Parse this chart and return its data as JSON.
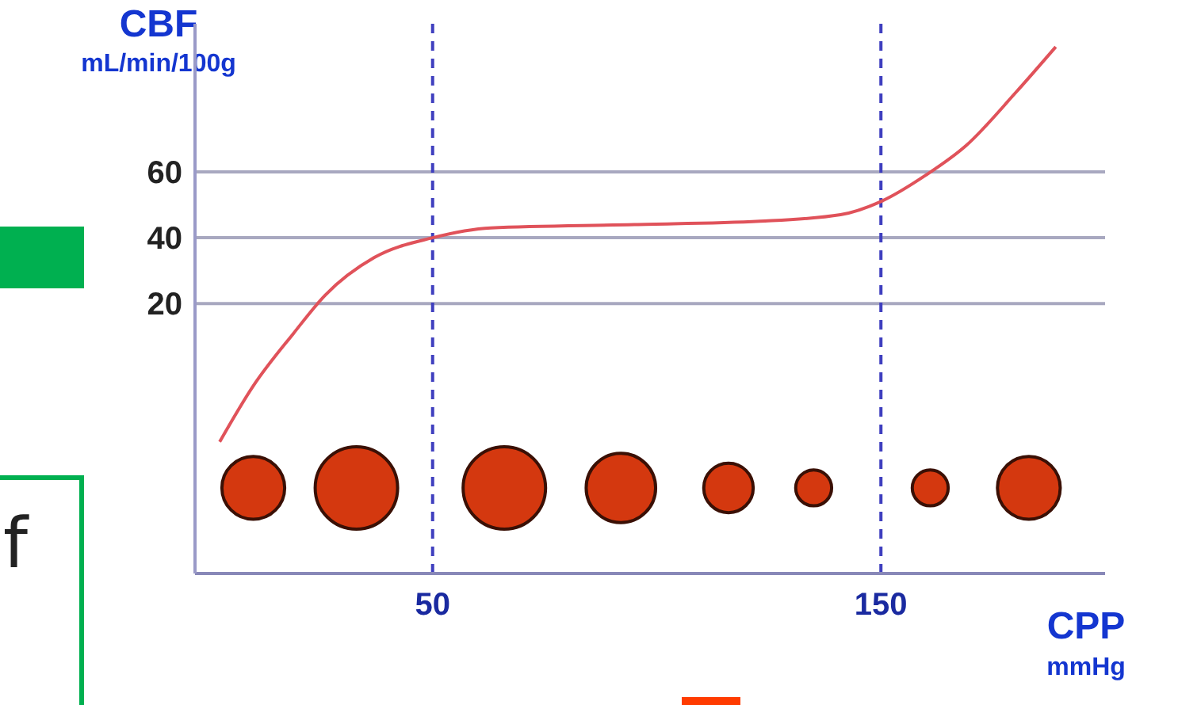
{
  "chart_data": {
    "type": "line",
    "xlabel": "CPP mmHg",
    "ylabel": "CBF mL/min/100g",
    "annotations": [
      "f"
    ],
    "xlim": [
      -3,
      200
    ],
    "xticks": [
      50,
      150
    ],
    "ylim": [
      -62,
      105
    ],
    "yticks": [
      20,
      40,
      60
    ],
    "grid": "y",
    "ref_lines": [
      {
        "axis": "x",
        "value": 50,
        "color": "#3f3fbf",
        "line_style": "dashed"
      },
      {
        "axis": "x",
        "value": 150,
        "color": "#3f3fbf",
        "line_style": "dashed"
      }
    ],
    "series": [
      {
        "color": "#e0525a",
        "x": [
          2.5,
          10,
          19,
          26,
          37,
          50,
          63,
          95,
          123,
          141,
          150,
          160,
          169,
          180,
          189
        ],
        "values": [
          -22,
          -5,
          11,
          22.5,
          34,
          40,
          43,
          44,
          45,
          47,
          51,
          59,
          68,
          84,
          98
        ]
      },
      {
        "type": "bubble",
        "color": "#d4380f",
        "x": [
          10,
          33,
          66,
          92,
          116,
          135,
          161,
          183
        ],
        "values": [
          -36,
          -36,
          -36,
          -36,
          -36,
          -36,
          -36,
          -36
        ],
        "sizes": [
          0.58,
          1,
          1,
          0.71,
          0.36,
          0.19,
          0.19,
          0.58
        ]
      }
    ]
  }
}
